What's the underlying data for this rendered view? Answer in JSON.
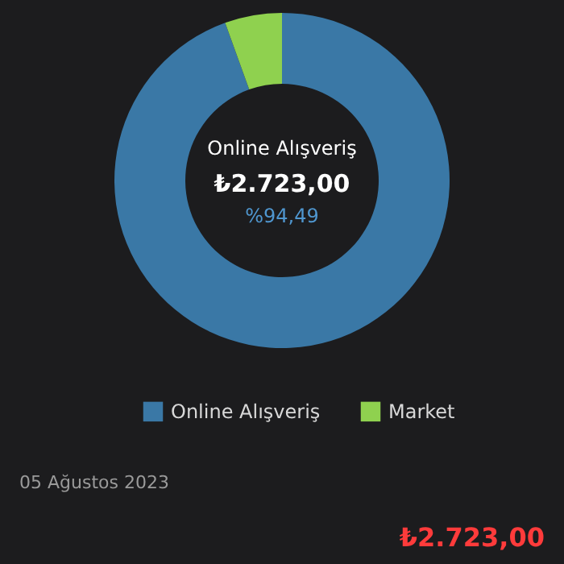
{
  "chart_data": {
    "type": "donut",
    "categories": [
      "Online Alışveriş",
      "Market"
    ],
    "values": [
      94.49,
      5.51
    ],
    "colors": [
      "#3a78a6",
      "#8fd14f"
    ],
    "legend": "bottom",
    "annotations": [
      "Online Alışveriş",
      "₺2.723,00",
      "%94,49",
      "05 Ağustos 2023",
      "₺2.723,00"
    ]
  }
}
